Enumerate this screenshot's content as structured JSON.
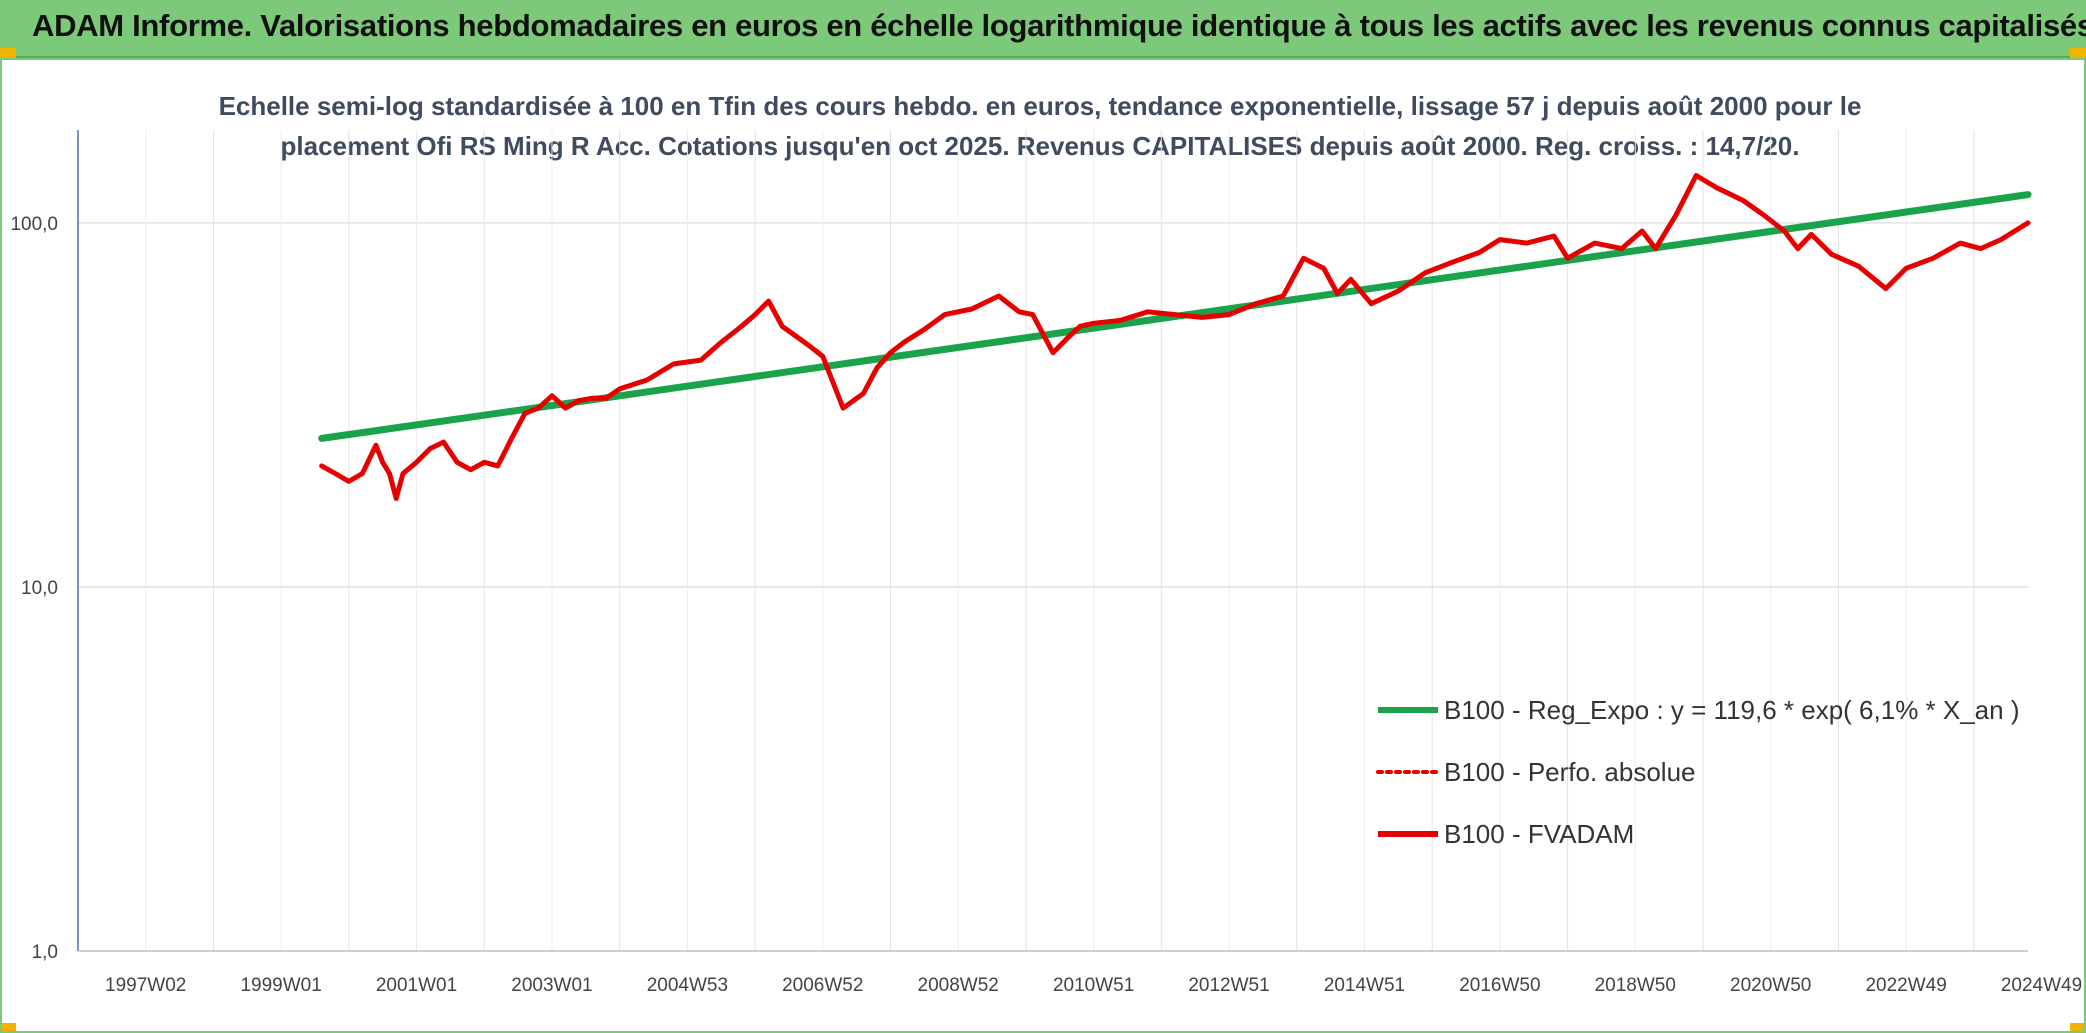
{
  "header": {
    "title": "ADAM Informe. Valorisations hebdomadaires en euros en échelle logarithmique identique à tous les actifs avec les revenus connus capitalisés"
  },
  "colors": {
    "header_bg": "#7cc97a",
    "regression": "#1aa34a",
    "fvadam": "#e60000",
    "perfo": "#e60000",
    "corner": "#f0b400"
  },
  "chart_data": {
    "type": "line",
    "title_line1": "Echelle semi-log standardisée à 100 en Tfin des cours hebdo. en euros, tendance exponentielle, lissage 57 j depuis août 2000 pour le",
    "title_line2": "placement Ofi RS Ming R Acc. Cotations jusqu'en oct 2025. Revenus CAPITALISES depuis août 2000. Reg. croiss. : 14,7/20.",
    "y_scale": "log",
    "ylim": [
      1,
      180
    ],
    "y_ticks": [
      {
        "value": 1,
        "label": "1,0"
      },
      {
        "value": 10,
        "label": "10,0"
      },
      {
        "value": 100,
        "label": "100,0"
      }
    ],
    "xlim": [
      1997.0,
      2025.8
    ],
    "x_ticks": [
      {
        "value": 1997.0,
        "label": "1997W02"
      },
      {
        "value": 1999.0,
        "label": "1999W01"
      },
      {
        "value": 2001.0,
        "label": "2001W01"
      },
      {
        "value": 2003.0,
        "label": "2003W01"
      },
      {
        "value": 2005.0,
        "label": "2004W53"
      },
      {
        "value": 2007.0,
        "label": "2006W52"
      },
      {
        "value": 2009.0,
        "label": "2008W52"
      },
      {
        "value": 2011.0,
        "label": "2010W51"
      },
      {
        "value": 2013.0,
        "label": "2012W51"
      },
      {
        "value": 2015.0,
        "label": "2014W51"
      },
      {
        "value": 2017.0,
        "label": "2016W50"
      },
      {
        "value": 2019.0,
        "label": "2018W50"
      },
      {
        "value": 2021.0,
        "label": "2020W50"
      },
      {
        "value": 2023.0,
        "label": "2022W49"
      },
      {
        "value": 2025.0,
        "label": "2024W49"
      }
    ],
    "grid": "horizontal and vertical",
    "legend_position": "bottom-right",
    "legend": [
      {
        "name": "B100 - Reg_Expo : y = 119,6 * exp( 6,1% *  X_an )",
        "style": "solid-thick",
        "color": "#1aa34a"
      },
      {
        "name": "B100 - Perfo. absolue",
        "style": "dotted",
        "color": "#e60000"
      },
      {
        "name": "B100 - FVADAM",
        "style": "solid-thick",
        "color": "#e60000"
      }
    ],
    "series": [
      {
        "name": "B100 - Reg_Expo : y = 119,6 * exp( 6,1% *  X_an )",
        "x": [
          2000.6,
          2025.8
        ],
        "y": [
          25.6,
          119.6
        ]
      },
      {
        "name": "B100 - FVADAM",
        "x": [
          2000.6,
          2000.8,
          2001.0,
          2001.2,
          2001.4,
          2001.5,
          2001.6,
          2001.7,
          2001.8,
          2002.0,
          2002.2,
          2002.4,
          2002.6,
          2002.8,
          2003.0,
          2003.2,
          2003.4,
          2003.6,
          2003.8,
          2004.0,
          2004.2,
          2004.4,
          2004.6,
          2004.8,
          2005.0,
          2005.4,
          2005.8,
          2006.2,
          2006.5,
          2006.8,
          2007.0,
          2007.2,
          2007.4,
          2007.8,
          2008.0,
          2008.3,
          2008.6,
          2008.8,
          2009.0,
          2009.2,
          2009.5,
          2009.8,
          2010.2,
          2010.6,
          2010.9,
          2011.1,
          2011.4,
          2011.6,
          2011.8,
          2012.0,
          2012.4,
          2012.8,
          2013.2,
          2013.6,
          2014.0,
          2014.4,
          2014.8,
          2015.1,
          2015.4,
          2015.6,
          2015.8,
          2016.1,
          2016.5,
          2016.9,
          2017.3,
          2017.7,
          2018.0,
          2018.4,
          2018.8,
          2019.0,
          2019.4,
          2019.8,
          2020.1,
          2020.3,
          2020.6,
          2020.9,
          2021.2,
          2021.6,
          2021.9,
          2022.2,
          2022.4,
          2022.6,
          2022.9,
          2023.3,
          2023.7,
          2024.0,
          2024.4,
          2024.8,
          2025.1,
          2025.4,
          2025.8
        ],
        "y": [
          21.5,
          20.5,
          19.5,
          20.5,
          24.5,
          22.0,
          20.5,
          17.5,
          20.5,
          22.0,
          24.0,
          25.0,
          22.0,
          21.0,
          22.0,
          21.5,
          25.5,
          30.0,
          31.0,
          33.5,
          31.0,
          32.5,
          33.0,
          33.0,
          35.0,
          37.0,
          41.0,
          42.0,
          47.0,
          52.0,
          56.0,
          61.0,
          52.0,
          46.0,
          43.0,
          31.0,
          34.0,
          40.0,
          44.0,
          47.0,
          51.0,
          56.0,
          58.0,
          63.0,
          57.0,
          56.0,
          44.0,
          48.0,
          52.0,
          53.0,
          54.0,
          57.0,
          56.0,
          55.0,
          56.0,
          60.0,
          63.0,
          80.0,
          75.0,
          64.0,
          70.0,
          60.0,
          65.0,
          73.0,
          78.0,
          83.0,
          90.0,
          88.0,
          92.0,
          80.0,
          88.0,
          85.0,
          95.0,
          85.0,
          105.0,
          135.0,
          125.0,
          115.0,
          105.0,
          95.0,
          85.0,
          93.0,
          82.0,
          76.0,
          66.0,
          75.0,
          80.0,
          88.0,
          85.0,
          90.0,
          100.0
        ]
      }
    ]
  }
}
